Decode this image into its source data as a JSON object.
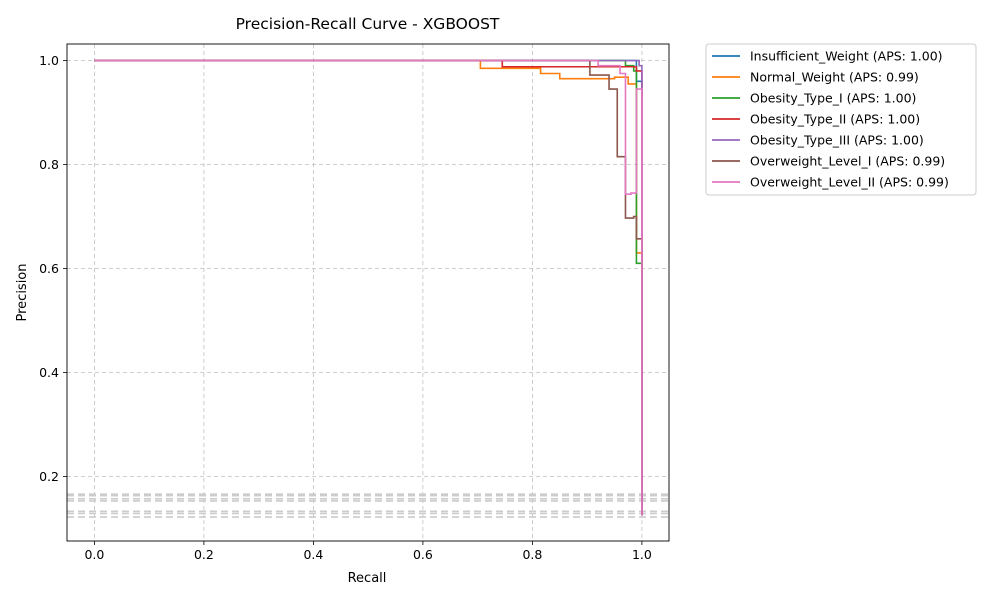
{
  "chart_data": {
    "type": "line",
    "title": "Precision-Recall Curve - XGBOOST",
    "xlabel": "Recall",
    "ylabel": "Precision",
    "xlim": [
      -0.05,
      1.05
    ],
    "ylim": [
      0.075,
      1.045
    ],
    "xticks": [
      0.0,
      0.2,
      0.4,
      0.6,
      0.8,
      1.0
    ],
    "xtick_labels": [
      "0.0",
      "0.2",
      "0.4",
      "0.6",
      "0.8",
      "1.0"
    ],
    "yticks": [
      0.2,
      0.4,
      0.6,
      0.8,
      1.0
    ],
    "ytick_labels": [
      "0.2",
      "0.4",
      "0.6",
      "0.8",
      "1.0"
    ],
    "grid": true,
    "legend_position": "outside-top-right",
    "baselines": [
      0.122,
      0.129,
      0.133,
      0.153,
      0.157,
      0.163,
      0.166
    ],
    "series": [
      {
        "name": "Insufficient_Weight (APS: 1.00)",
        "color": "#1f77b4",
        "x": [
          0,
          0.99,
          0.99,
          1.0,
          1.0
        ],
        "y": [
          1.0,
          1.0,
          0.96,
          0.96,
          0.125
        ]
      },
      {
        "name": "Normal_Weight (APS: 0.99)",
        "color": "#ff7f0e",
        "x": [
          0,
          0.705,
          0.705,
          0.815,
          0.815,
          0.85,
          0.85,
          0.95,
          0.95,
          0.975,
          0.975,
          0.99,
          0.99,
          1.0,
          1.0
        ],
        "y": [
          1.0,
          1.0,
          0.985,
          0.985,
          0.975,
          0.975,
          0.965,
          0.965,
          0.968,
          0.968,
          0.955,
          0.955,
          0.63,
          0.63,
          0.125
        ]
      },
      {
        "name": "Obesity_Type_I (APS: 1.00)",
        "color": "#2ca02c",
        "x": [
          0,
          0.97,
          0.97,
          0.985,
          0.985,
          0.99,
          0.99,
          1.0,
          1.0
        ],
        "y": [
          1.0,
          1.0,
          0.99,
          0.99,
          0.98,
          0.98,
          0.61,
          0.61,
          0.125
        ]
      },
      {
        "name": "Obesity_Type_II (APS: 1.00)",
        "color": "#d62728",
        "x": [
          0,
          0.745,
          0.745,
          0.99,
          0.99,
          1.0,
          1.0
        ],
        "y": [
          1.0,
          1.0,
          0.988,
          0.988,
          0.98,
          0.98,
          0.125
        ]
      },
      {
        "name": "Obesity_Type_III (APS: 1.00)",
        "color": "#9467bd",
        "x": [
          0,
          0.995,
          0.995,
          1.0,
          1.0
        ],
        "y": [
          1.0,
          1.0,
          0.99,
          0.99,
          0.125
        ]
      },
      {
        "name": "Overweight_Level_I (APS: 0.99)",
        "color": "#8c564b",
        "x": [
          0,
          0.905,
          0.905,
          0.94,
          0.94,
          0.955,
          0.955,
          0.97,
          0.97,
          0.985,
          0.985,
          0.99,
          0.99,
          1.0,
          1.0
        ],
        "y": [
          1.0,
          1.0,
          0.972,
          0.972,
          0.945,
          0.945,
          0.815,
          0.815,
          0.697,
          0.697,
          0.7,
          0.7,
          0.657,
          0.657,
          0.125
        ]
      },
      {
        "name": "Overweight_Level_II (APS: 0.99)",
        "color": "#e377c2",
        "x": [
          0,
          0.92,
          0.92,
          0.96,
          0.96,
          0.97,
          0.97,
          0.98,
          0.98,
          0.99,
          0.99,
          1.0,
          1.0
        ],
        "y": [
          1.0,
          1.0,
          0.99,
          0.99,
          0.975,
          0.975,
          0.743,
          0.743,
          0.745,
          0.745,
          0.945,
          0.945,
          0.125
        ]
      }
    ]
  }
}
